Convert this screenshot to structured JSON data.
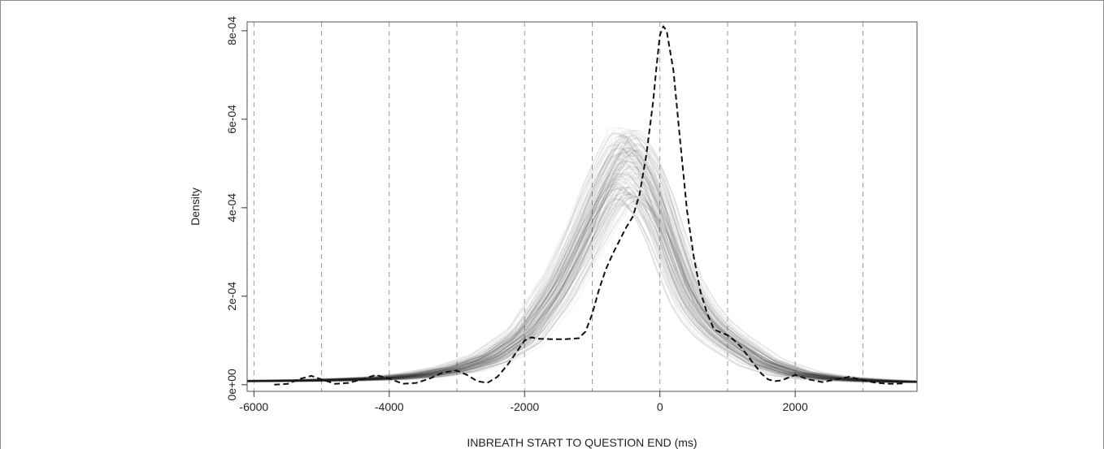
{
  "chart_data": {
    "type": "line",
    "title": "",
    "xlabel": "INBREATH START TO QUESTION END (ms)",
    "ylabel": "Density",
    "xlim": [
      -6100,
      3800
    ],
    "ylim": [
      -1.5e-05,
      0.00082
    ],
    "x_ticks": [
      -6000,
      -4000,
      -2000,
      0,
      2000
    ],
    "x_tick_labels": [
      "-6000",
      "-4000",
      "-2000",
      "0",
      "2000"
    ],
    "y_ticks": [
      0,
      0.0002,
      0.0004,
      0.0006,
      0.0008
    ],
    "y_tick_labels": [
      "0e+00",
      "2e-04",
      "4e-04",
      "6e-04",
      "8e-04"
    ],
    "vertical_gridlines": [
      -6000,
      -5000,
      -4000,
      -3000,
      -2000,
      -1000,
      0,
      1000,
      2000,
      3000
    ],
    "grid_style": "dashed vertical lines",
    "series": [
      {
        "style": "dashed black",
        "x": [
          -5700,
          -5500,
          -5300,
          -5150,
          -5000,
          -4800,
          -4600,
          -4400,
          -4200,
          -4000,
          -3800,
          -3600,
          -3400,
          -3200,
          -3000,
          -2850,
          -2700,
          -2550,
          -2400,
          -2250,
          -2100,
          -2000,
          -1900,
          -1800,
          -1600,
          -1400,
          -1200,
          -1100,
          -1000,
          -900,
          -800,
          -700,
          -600,
          -500,
          -400,
          -300,
          -200,
          -100,
          -50,
          0,
          50,
          100,
          200,
          300,
          400,
          500,
          600,
          700,
          800,
          900,
          1000,
          1100,
          1200,
          1300,
          1400,
          1500,
          1600,
          1700,
          1800,
          2000,
          2200,
          2400,
          2600,
          2800,
          3000,
          3200,
          3400,
          3600
        ],
        "values": [
          0.0,
          2e-06,
          1.4e-05,
          2e-05,
          1.2e-05,
          2e-06,
          4e-06,
          1.2e-05,
          2.2e-05,
          1.4e-05,
          2e-06,
          4e-06,
          1.4e-05,
          2.8e-05,
          3.2e-05,
          2.2e-05,
          8e-06,
          4e-06,
          1.8e-05,
          4.5e-05,
          7.8e-05,
          0.0001,
          0.000107,
          0.000104,
          0.000103,
          0.000103,
          0.000105,
          0.00012,
          0.00016,
          0.000215,
          0.00026,
          0.000295,
          0.000325,
          0.000355,
          0.00038,
          0.00043,
          0.00052,
          0.00064,
          0.00072,
          0.00079,
          0.00081,
          0.0008,
          0.00071,
          0.00055,
          0.000395,
          0.00029,
          0.00021,
          0.00016,
          0.000125,
          0.000118,
          0.000112,
          0.0001,
          8.5e-05,
          6.5e-05,
          4.5e-05,
          2.5e-05,
          1.2e-05,
          8e-06,
          1e-05,
          2.2e-05,
          1.2e-05,
          6e-06,
          1.2e-05,
          1.8e-05,
          1e-05,
          4e-06,
          2e-06,
          3e-06
        ]
      },
      {
        "style": "bundle of many thin semi-transparent grey density curves",
        "x": [
          -6200,
          -5500,
          -5000,
          -4500,
          -4000,
          -3500,
          -3000,
          -2500,
          -2000,
          -1500,
          -1200,
          -1000,
          -800,
          -600,
          -500,
          -400,
          -200,
          0,
          200,
          400,
          600,
          800,
          1000,
          1500,
          2000,
          2500,
          3000,
          3500,
          3800
        ],
        "values": [
          8e-06,
          9e-06,
          1e-05,
          1.2e-05,
          1.5e-05,
          2.2e-05,
          3.5e-05,
          6e-05,
          0.00011,
          0.00022,
          0.00031,
          0.00038,
          0.00044,
          0.00049,
          0.000495,
          0.00049,
          0.00045,
          0.00038,
          0.00029,
          0.00021,
          0.00016,
          0.000125,
          0.0001,
          5e-05,
          2.5e-05,
          1.5e-05,
          1e-05,
          7e-06,
          6e-06
        ]
      }
    ]
  }
}
